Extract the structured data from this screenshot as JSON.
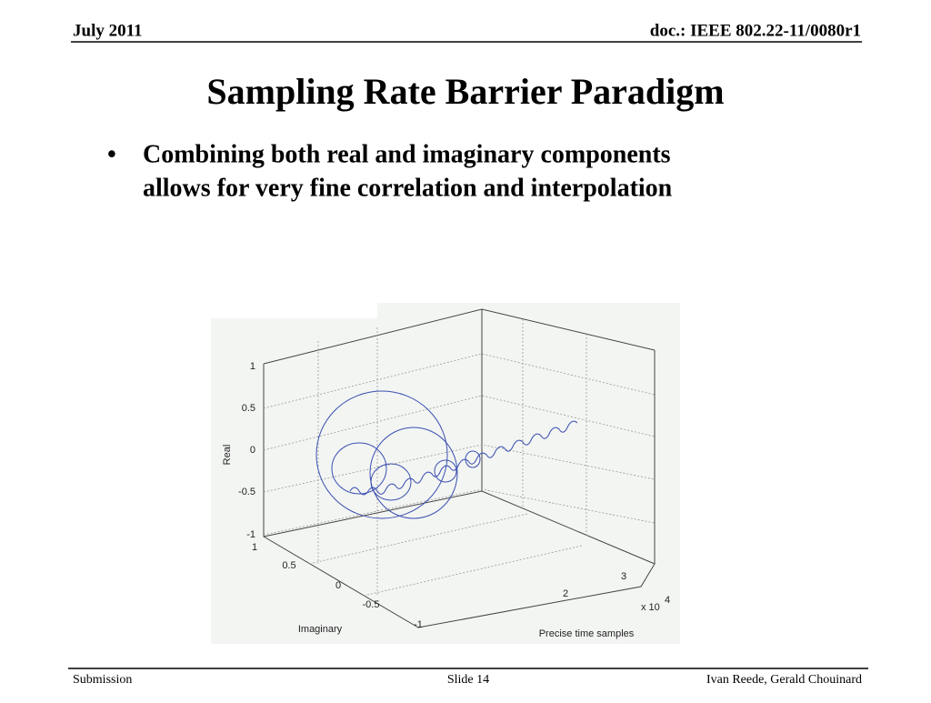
{
  "header": {
    "date": "July 2011",
    "doc_id": "doc.: IEEE 802.22-11/0080r1"
  },
  "title": "Sampling Rate Barrier Paradigm",
  "bullets": [
    {
      "line1": "Combining both real and imaginary components",
      "line2": "allows for very fine correlation and interpolation"
    }
  ],
  "figure": {
    "real_label": "Real",
    "real_ticks": [
      "1",
      "0.5",
      "0",
      "-0.5",
      "-1"
    ],
    "imaginary_label": "Imaginary",
    "imaginary_ticks": [
      "1",
      "0.5",
      "0",
      "-0.5",
      "-1"
    ],
    "time_label": "Precise time samples",
    "time_ticks": [
      "2",
      "3"
    ],
    "multiplier": "x 10",
    "multiplier_exp": "4"
  },
  "footer": {
    "left": "Submission",
    "center": "Slide 14",
    "right": "Ivan Reede, Gerald Chouinard"
  }
}
